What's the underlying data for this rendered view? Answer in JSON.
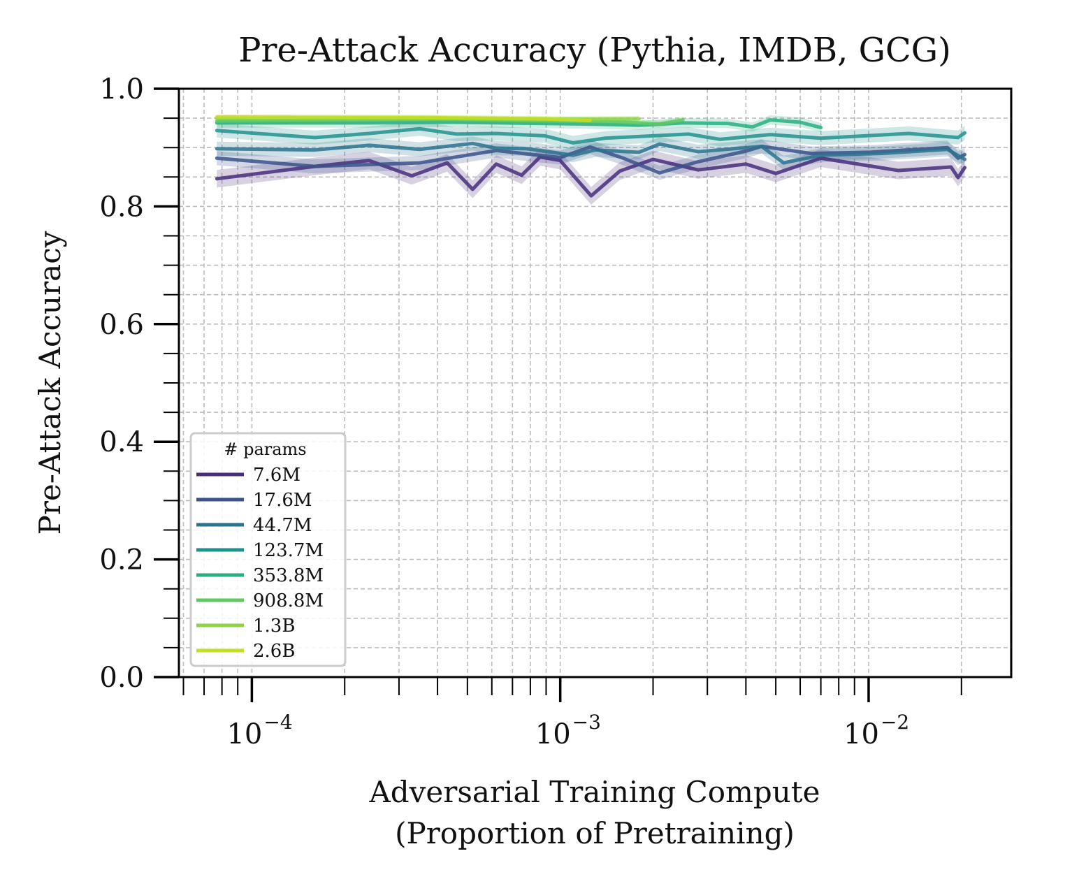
{
  "chart_data": {
    "type": "line",
    "title": "Pre-Attack Accuracy (Pythia, IMDB, GCG)",
    "xlabel_lines": [
      "Adversarial Training Compute",
      "(Proportion of Pretraining)"
    ],
    "ylabel": "Pre-Attack Accuracy",
    "x_scale": "log",
    "xlim": [
      5.8e-05,
      0.029
    ],
    "ylim": [
      0.0,
      1.0
    ],
    "grid": true,
    "y_ticks": [
      {
        "value": 0.0,
        "label": "0.0"
      },
      {
        "value": 0.2,
        "label": "0.2"
      },
      {
        "value": 0.4,
        "label": "0.4"
      },
      {
        "value": 0.6,
        "label": "0.6"
      },
      {
        "value": 0.8,
        "label": "0.8"
      },
      {
        "value": 1.0,
        "label": "1.0"
      }
    ],
    "x_ticks": [
      {
        "value": 0.0001,
        "base": "10",
        "exp": "−4"
      },
      {
        "value": 0.001,
        "base": "10",
        "exp": "−3"
      },
      {
        "value": 0.01,
        "base": "10",
        "exp": "−2"
      }
    ],
    "legend": {
      "title": "# params",
      "location": "lower-left"
    },
    "series": [
      {
        "name": "7.6M",
        "color": "#472d7b",
        "band": 0.015,
        "points": [
          [
            7.7e-05,
            0.847
          ],
          [
            0.00016,
            0.868
          ],
          [
            0.00024,
            0.878
          ],
          [
            0.00033,
            0.852
          ],
          [
            0.00043,
            0.874
          ],
          [
            0.00052,
            0.829
          ],
          [
            0.00062,
            0.872
          ],
          [
            0.00075,
            0.853
          ],
          [
            0.00086,
            0.884
          ],
          [
            0.001,
            0.878
          ],
          [
            0.00126,
            0.818
          ],
          [
            0.00156,
            0.86
          ],
          [
            0.002,
            0.88
          ],
          [
            0.0028,
            0.862
          ],
          [
            0.004,
            0.872
          ],
          [
            0.005,
            0.856
          ],
          [
            0.007,
            0.882
          ],
          [
            0.0125,
            0.861
          ],
          [
            0.0185,
            0.867
          ],
          [
            0.0195,
            0.849
          ],
          [
            0.0205,
            0.866
          ]
        ]
      },
      {
        "name": "17.6M",
        "color": "#3b528b",
        "band": 0.012,
        "points": [
          [
            7.7e-05,
            0.882
          ],
          [
            0.00016,
            0.868
          ],
          [
            0.00035,
            0.874
          ],
          [
            0.00062,
            0.895
          ],
          [
            0.001,
            0.883
          ],
          [
            0.00125,
            0.901
          ],
          [
            0.0016,
            0.882
          ],
          [
            0.0021,
            0.857
          ],
          [
            0.0028,
            0.876
          ],
          [
            0.004,
            0.894
          ],
          [
            0.0045,
            0.902
          ],
          [
            0.0065,
            0.89
          ],
          [
            0.01,
            0.892
          ],
          [
            0.018,
            0.9
          ],
          [
            0.0195,
            0.882
          ],
          [
            0.0205,
            0.888
          ]
        ]
      },
      {
        "name": "44.7M",
        "color": "#2c728e",
        "band": 0.012,
        "points": [
          [
            7.7e-05,
            0.898
          ],
          [
            0.00016,
            0.896
          ],
          [
            0.00024,
            0.904
          ],
          [
            0.00035,
            0.897
          ],
          [
            0.00052,
            0.907
          ],
          [
            0.00062,
            0.899
          ],
          [
            0.00078,
            0.898
          ],
          [
            0.0011,
            0.887
          ],
          [
            0.0013,
            0.896
          ],
          [
            0.0018,
            0.892
          ],
          [
            0.0021,
            0.906
          ],
          [
            0.0028,
            0.893
          ],
          [
            0.0045,
            0.902
          ],
          [
            0.0053,
            0.874
          ],
          [
            0.007,
            0.887
          ],
          [
            0.011,
            0.89
          ],
          [
            0.018,
            0.897
          ],
          [
            0.0205,
            0.88
          ]
        ]
      },
      {
        "name": "123.7M",
        "color": "#21918c",
        "band": 0.012,
        "points": [
          [
            7.7e-05,
            0.929
          ],
          [
            0.00016,
            0.917
          ],
          [
            0.00024,
            0.924
          ],
          [
            0.00035,
            0.932
          ],
          [
            0.00046,
            0.923
          ],
          [
            0.00062,
            0.924
          ],
          [
            0.00089,
            0.92
          ],
          [
            0.0011,
            0.908
          ],
          [
            0.0014,
            0.916
          ],
          [
            0.0026,
            0.923
          ],
          [
            0.0033,
            0.914
          ],
          [
            0.0048,
            0.922
          ],
          [
            0.007,
            0.916
          ],
          [
            0.0135,
            0.924
          ],
          [
            0.0195,
            0.917
          ],
          [
            0.0205,
            0.925
          ]
        ]
      },
      {
        "name": "353.8M",
        "color": "#28ae80",
        "band": 0.008,
        "points": [
          [
            7.7e-05,
            0.942
          ],
          [
            0.00024,
            0.942
          ],
          [
            0.00045,
            0.943
          ],
          [
            0.0012,
            0.94
          ],
          [
            0.0018,
            0.938
          ],
          [
            0.0025,
            0.942
          ],
          [
            0.0035,
            0.941
          ],
          [
            0.0042,
            0.935
          ],
          [
            0.0048,
            0.947
          ],
          [
            0.006,
            0.943
          ],
          [
            0.007,
            0.934
          ]
        ]
      },
      {
        "name": "908.8M",
        "color": "#5ec962",
        "band": 0.006,
        "points": [
          [
            7.7e-05,
            0.945
          ],
          [
            0.00039,
            0.948
          ],
          [
            0.00095,
            0.945
          ],
          [
            0.0015,
            0.944
          ],
          [
            0.0021,
            0.94
          ],
          [
            0.0025,
            0.947
          ]
        ]
      },
      {
        "name": "1.3B",
        "color": "#8ed346",
        "band": 0.005,
        "points": [
          [
            7.7e-05,
            0.95
          ],
          [
            0.00037,
            0.95
          ],
          [
            0.00088,
            0.948
          ],
          [
            0.0018,
            0.949
          ]
        ]
      },
      {
        "name": "2.6B",
        "color": "#c2df23",
        "band": 0.005,
        "points": [
          [
            7.7e-05,
            0.952
          ],
          [
            0.00036,
            0.951
          ],
          [
            0.00088,
            0.949
          ],
          [
            0.00125,
            0.946
          ]
        ]
      }
    ]
  }
}
